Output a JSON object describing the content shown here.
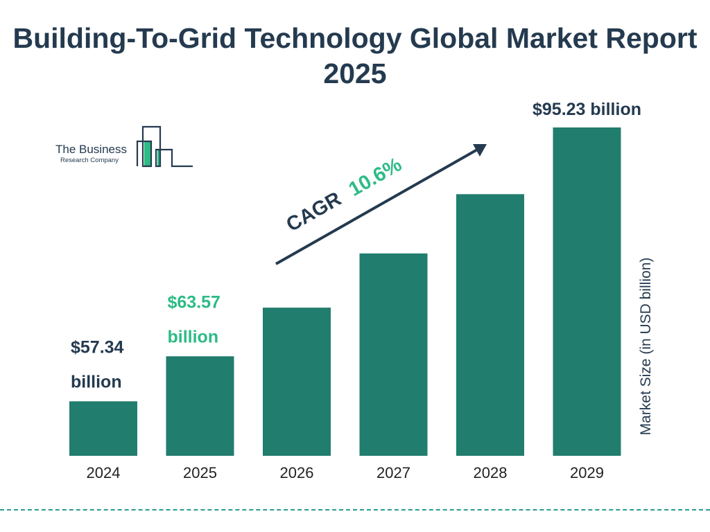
{
  "title": "Building-To-Grid Technology Global Market Report 2025",
  "logo": {
    "line1": "The Business",
    "line2": "Research Company"
  },
  "colors": {
    "bar": "#217d6e",
    "text": "#243a4f",
    "accent": "#2dbb86",
    "divider": "#2a9d8f"
  },
  "chart_data": {
    "type": "bar",
    "title": "Building-To-Grid Technology Global Market Report 2025",
    "categories": [
      "2024",
      "2025",
      "2026",
      "2027",
      "2028",
      "2029"
    ],
    "values": [
      57.34,
      63.57,
      70.3,
      77.8,
      86.0,
      95.23
    ],
    "data_labels": [
      "$57.34 billion",
      "$63.57 billion",
      null,
      null,
      null,
      "$95.23 billion"
    ],
    "ylabel": "Market Size (in USD billion)",
    "xlabel": "",
    "ylim": [
      49.8,
      95.23
    ],
    "grid": false,
    "annotation": {
      "label": "CAGR",
      "value": "10.6%"
    }
  }
}
